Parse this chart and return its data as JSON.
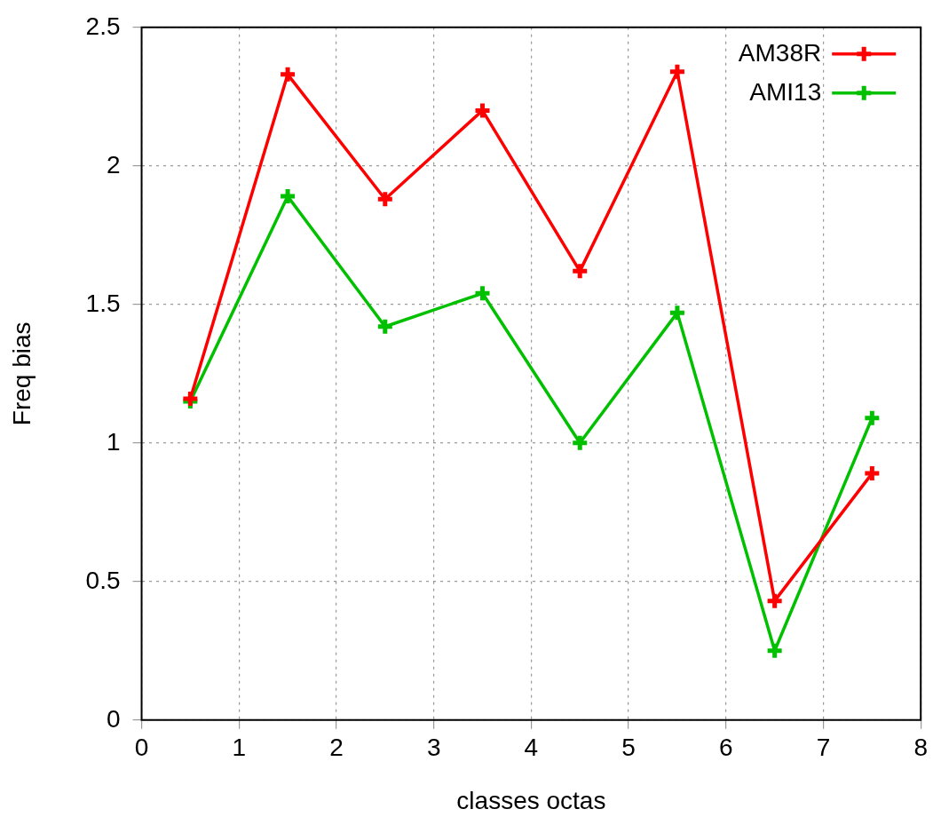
{
  "chart_data": {
    "type": "line",
    "xlabel": "classes octas",
    "ylabel": "Freq bias",
    "x": [
      0.5,
      1.5,
      2.5,
      3.5,
      4.5,
      5.5,
      6.5,
      7.5
    ],
    "series": [
      {
        "name": "AM38R",
        "color": "#ff0000",
        "values": [
          1.16,
          2.33,
          1.88,
          2.2,
          1.62,
          2.34,
          0.43,
          0.89
        ]
      },
      {
        "name": "AMI13",
        "color": "#00c000",
        "values": [
          1.15,
          1.89,
          1.42,
          1.54,
          1.0,
          1.47,
          0.25,
          1.09
        ]
      }
    ],
    "xlim": [
      0,
      8
    ],
    "xticks": [
      0,
      1,
      2,
      3,
      4,
      5,
      6,
      7,
      8
    ],
    "ylim": [
      0,
      2.5
    ],
    "yticks": [
      0,
      0.5,
      1,
      1.5,
      2,
      2.5
    ],
    "grid": true,
    "legend": "top right",
    "marker": "cross",
    "line_style": "solid"
  }
}
